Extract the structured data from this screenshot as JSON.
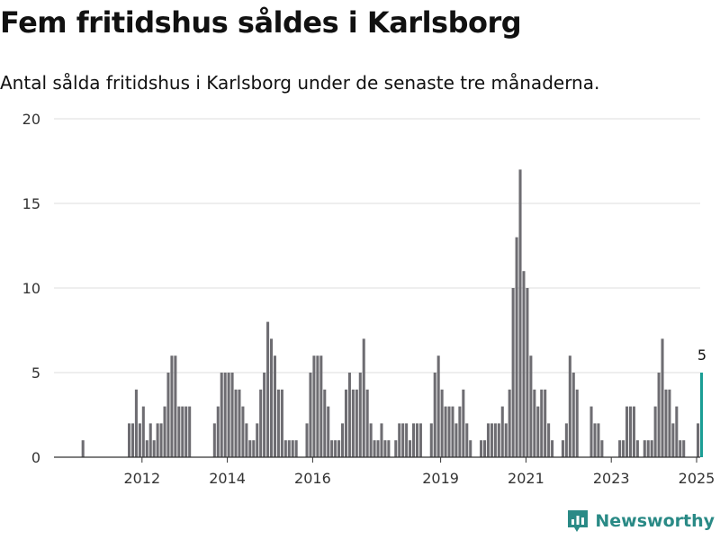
{
  "title": "Fem fritidshus såldes i Karlsborg",
  "subtitle": "Antal sålda fritidshus i Karlsborg under de senaste tre månaderna.",
  "brand": {
    "name": "Newsworthy",
    "icon": "newsworthy-chart-icon",
    "color": "#2a8a86"
  },
  "colors": {
    "bar": "#6e6d72",
    "highlight": "#1b9e95",
    "grid": "#dddddd",
    "axis": "#333333"
  },
  "chart_data": {
    "type": "bar",
    "title": "Fem fritidshus såldes i Karlsborg",
    "subtitle": "Antal sålda fritidshus i Karlsborg under de senaste tre månaderna.",
    "ylim": [
      0,
      20
    ],
    "yticks": [
      0,
      5,
      10,
      15,
      20
    ],
    "xticks": [
      "2012",
      "2014",
      "2016",
      "2019",
      "2021",
      "2023",
      "2025"
    ],
    "grid": true,
    "values": [
      0,
      0,
      0,
      0,
      0,
      0,
      0,
      1,
      0,
      0,
      0,
      0,
      0,
      0,
      0,
      0,
      0,
      0,
      0,
      0,
      2,
      2,
      4,
      2,
      3,
      1,
      2,
      1,
      2,
      2,
      3,
      5,
      6,
      6,
      3,
      3,
      3,
      3,
      0,
      0,
      0,
      0,
      0,
      0,
      2,
      3,
      5,
      5,
      5,
      5,
      4,
      4,
      3,
      2,
      1,
      1,
      2,
      4,
      5,
      8,
      7,
      6,
      4,
      4,
      1,
      1,
      1,
      1,
      0,
      0,
      2,
      5,
      6,
      6,
      6,
      4,
      3,
      1,
      1,
      1,
      2,
      4,
      5,
      4,
      4,
      5,
      7,
      4,
      2,
      1,
      1,
      2,
      1,
      1,
      0,
      1,
      2,
      2,
      2,
      1,
      2,
      2,
      2,
      0,
      0,
      2,
      5,
      6,
      4,
      3,
      3,
      3,
      2,
      3,
      4,
      2,
      1,
      0,
      0,
      1,
      1,
      2,
      2,
      2,
      2,
      3,
      2,
      4,
      10,
      13,
      17,
      11,
      10,
      6,
      4,
      3,
      4,
      4,
      2,
      1,
      0,
      0,
      1,
      2,
      6,
      5,
      4,
      0,
      0,
      0,
      3,
      2,
      2,
      1,
      0,
      0,
      0,
      0,
      1,
      1,
      3,
      3,
      3,
      1,
      0,
      1,
      1,
      1,
      3,
      5,
      7,
      4,
      4,
      2,
      3,
      1,
      1,
      0,
      0,
      0,
      2,
      5
    ],
    "highlight_label": "5"
  }
}
